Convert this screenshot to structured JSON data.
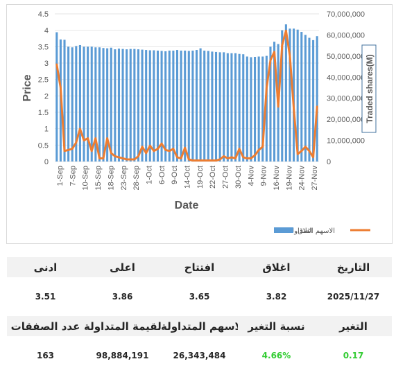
{
  "chart_data": {
    "type": "bar+line",
    "xlabel": "Date",
    "ylabel_left": "Price",
    "ylabel_right": "Traded shares(M)",
    "ylim_left": [
      0,
      4.5
    ],
    "yticks_left": [
      "0",
      "0.5",
      "1",
      "1.5",
      "2",
      "2.5",
      "3",
      "3.5",
      "4",
      "4.5"
    ],
    "ylim_right": [
      0,
      70000000
    ],
    "yticks_right": [
      "0",
      "10,000,000",
      "20,000,000",
      "30,000,000",
      "40,000,000",
      "50,000,000",
      "60,000,000",
      "70,000,000"
    ],
    "x_tick_labels": [
      "1-Sep",
      "7-Sep",
      "10-Sep",
      "15-Sep",
      "18-Sep",
      "23-Sep",
      "28-Sep",
      "1-Oct",
      "6-Oct",
      "9-Oct",
      "14-Oct",
      "19-Oct",
      "22-Oct",
      "27-Oct",
      "30-Oct",
      "4-Nov",
      "9-Nov",
      "16-Nov",
      "19-Nov",
      "24-Nov",
      "27-Nov"
    ],
    "legend": [
      "اغلاق",
      "الاسهم المتداولة"
    ],
    "series": [
      {
        "name": "اغلاق",
        "kind": "bar",
        "color": "#5b9bd5",
        "values": [
          3.94,
          3.72,
          3.71,
          3.5,
          3.48,
          3.52,
          3.55,
          3.5,
          3.5,
          3.5,
          3.48,
          3.48,
          3.46,
          3.45,
          3.47,
          3.42,
          3.44,
          3.43,
          3.42,
          3.43,
          3.43,
          3.42,
          3.41,
          3.4,
          3.39,
          3.39,
          3.38,
          3.37,
          3.36,
          3.38,
          3.38,
          3.4,
          3.38,
          3.38,
          3.37,
          3.38,
          3.4,
          3.45,
          3.38,
          3.37,
          3.35,
          3.34,
          3.33,
          3.33,
          3.3,
          3.3,
          3.3,
          3.28,
          3.27,
          3.2,
          3.18,
          3.19,
          3.2,
          3.2,
          3.22,
          3.5,
          3.65,
          3.58,
          4.0,
          4.18,
          4.05,
          4.05,
          4.02,
          3.95,
          3.86,
          3.77,
          3.7,
          3.82
        ]
      },
      {
        "name": "الاسهم المتداولة",
        "kind": "line",
        "color": "#ed7d31",
        "values": [
          46000000,
          35000000,
          5000000,
          5500000,
          6000000,
          9000000,
          15500000,
          10000000,
          11000000,
          5000000,
          11000000,
          1500000,
          1500000,
          11000000,
          4000000,
          2500000,
          2000000,
          1500000,
          1000000,
          1000000,
          1000000,
          2500000,
          7000000,
          4000000,
          7500000,
          5000000,
          6000000,
          8500000,
          5500000,
          5000000,
          6000000,
          2000000,
          1500000,
          6500000,
          1000000,
          500000,
          500000,
          500000,
          500000,
          500000,
          500000,
          500000,
          1000000,
          2500000,
          1500000,
          2000000,
          1500000,
          6000000,
          2000000,
          1500000,
          1500000,
          3000000,
          5500000,
          7000000,
          35000000,
          48000000,
          52000000,
          26000000,
          55000000,
          62000000,
          50000000,
          25000000,
          3500000,
          5000000,
          7000000,
          5000000,
          2000000,
          26000000
        ]
      }
    ]
  },
  "table1": {
    "headers": [
      "التاريخ",
      "اغلاق",
      "افتتاح",
      "اعلى",
      "ادنى"
    ],
    "values": [
      "2025/11/27",
      "3.82",
      "3.65",
      "3.86",
      "3.51"
    ]
  },
  "table2": {
    "headers": [
      "التغير",
      "نسبة التغير",
      "الاسهم المتداولة",
      "القيمة المتداولة",
      "عدد الصفقات"
    ],
    "values": [
      "0.17",
      "4.66%",
      "26,343,484",
      "98,884,191",
      "163"
    ]
  },
  "colors": {
    "bar": "#5b9bd5",
    "line": "#ed7d31",
    "positive": "#33cc33",
    "header_bg": "#f2f2f2"
  }
}
